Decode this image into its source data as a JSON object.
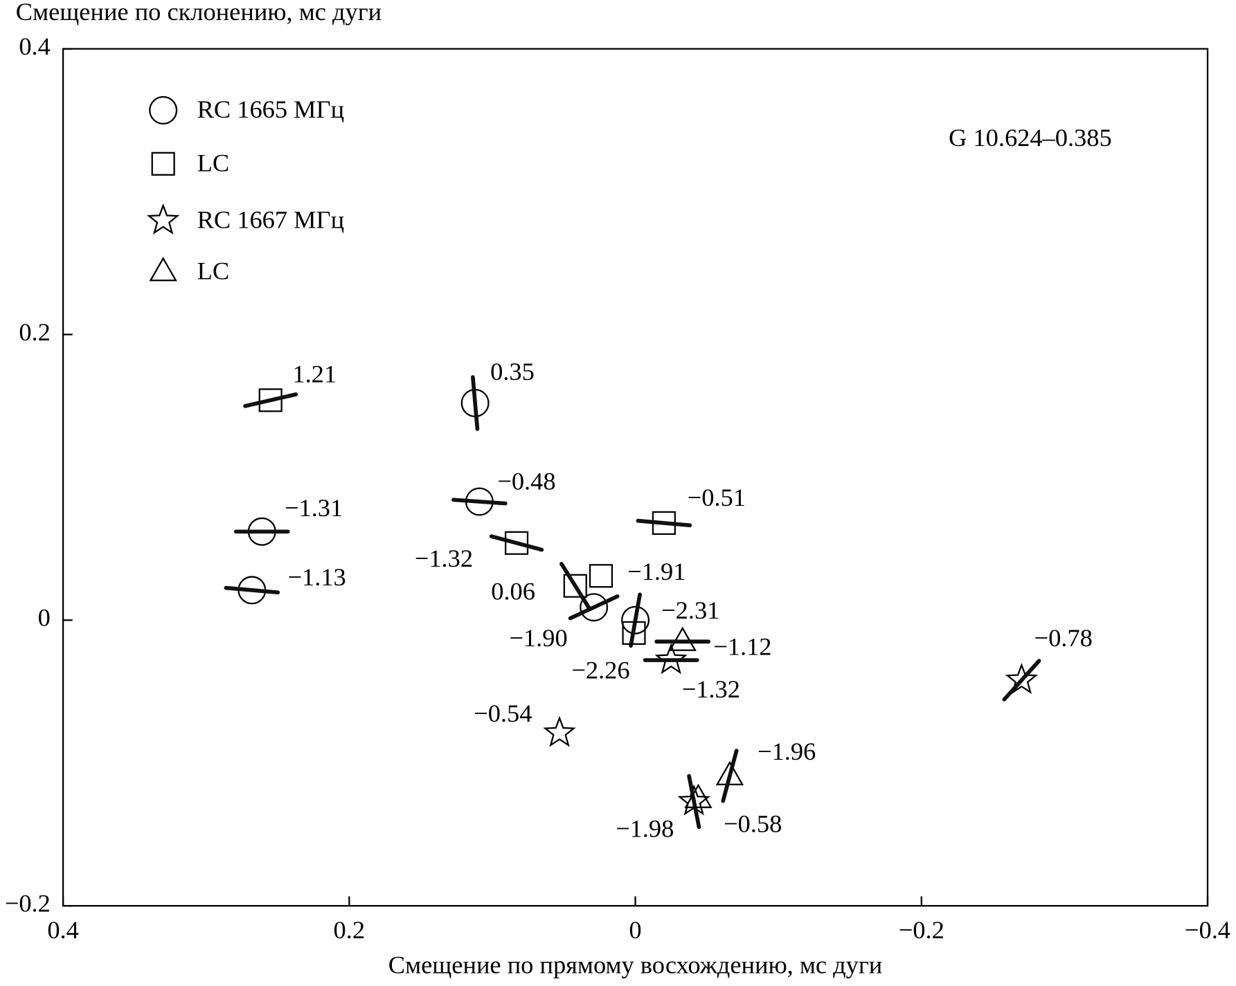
{
  "chart_data": {
    "type": "scatter",
    "y_label": "Смещение по склонению, мс дуги",
    "x_label": "Смещение по прямому восхождению, мс дуги",
    "annotation": "G 10.624–0.385",
    "xlim": [
      0.4,
      -0.4
    ],
    "ylim": [
      -0.2,
      0.4
    ],
    "xticks": [
      0.4,
      0.2,
      0,
      {
        "value": -0.2,
        "label": "−0.2"
      },
      {
        "value": -0.4,
        "label": "−0.4"
      }
    ],
    "yticks": [
      {
        "value": -0.2,
        "label": "−0.2"
      },
      0,
      0.2,
      0.4
    ],
    "legend": "upper left",
    "series": [
      {
        "name": "RC 1665 МГц",
        "marker": "circle",
        "color": "#000000",
        "x": [
          0.112,
          0.109,
          0.261,
          0.268,
          0.029,
          0.0
        ],
        "y": [
          0.152,
          0.083,
          0.062,
          0.021,
          0.009,
          0.0
        ],
        "labels": [
          "0.35",
          "−0.48",
          "−1.31",
          "−1.13",
          "0.06",
          "−2.31"
        ],
        "angles": [
          95,
          -4,
          0,
          -5,
          25,
          80
        ]
      },
      {
        "name": "LC",
        "marker": "square",
        "color": "#000000",
        "x": [
          0.255,
          0.083,
          -0.02,
          0.024,
          0.042,
          0.001
        ],
        "y": [
          0.154,
          0.054,
          0.068,
          0.031,
          0.024,
          -0.009
        ],
        "labels": [
          "1.21",
          "−1.32",
          "−0.51",
          "−1.91",
          "−1.90",
          "−2.26"
        ],
        "angles": [
          13,
          -15,
          -5,
          null,
          -58,
          null
        ]
      },
      {
        "name": "RC 1667 МГц",
        "marker": "star",
        "color": "#000000",
        "x": [
          0.053,
          -0.025,
          -0.27,
          -0.041
        ],
        "y": [
          -0.079,
          -0.028,
          -0.042,
          -0.127
        ],
        "labels": [
          "−0.54",
          "−1.32",
          "−0.78",
          "−1.98"
        ],
        "angles": [
          null,
          0,
          48,
          101
        ]
      },
      {
        "name": "LC",
        "marker": "triangle",
        "color": "#000000",
        "x": [
          -0.033,
          -0.066,
          -0.044
        ],
        "y": [
          -0.015,
          -0.109,
          -0.125
        ],
        "labels": [
          "−1.12",
          "−1.96",
          "−0.58"
        ],
        "angles": [
          0,
          75,
          null
        ]
      }
    ]
  }
}
